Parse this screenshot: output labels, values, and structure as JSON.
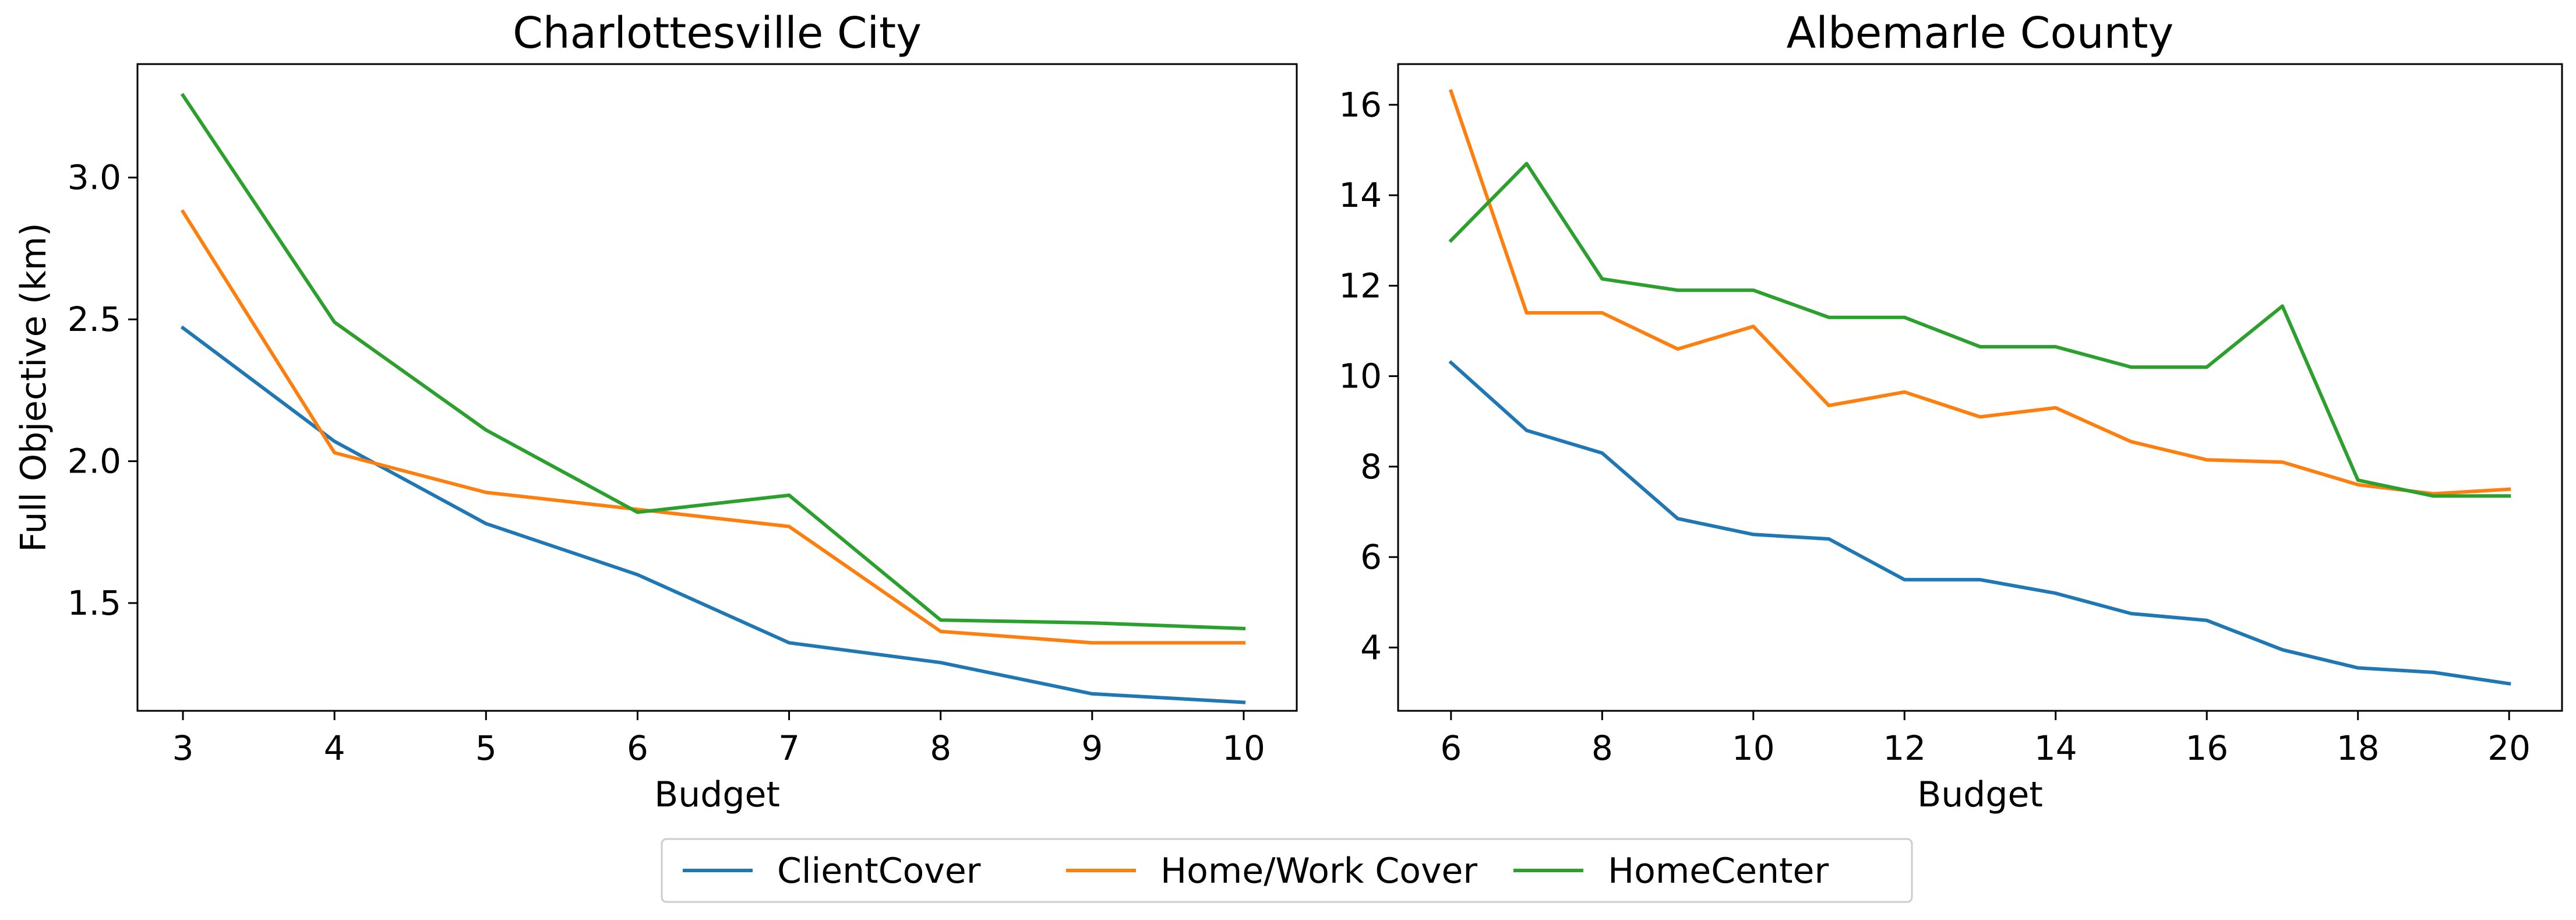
{
  "colors": {
    "ClientCover": "#1f77b4",
    "Home/Work Cover": "#ff7f0e",
    "HomeCenter": "#2ca02c"
  },
  "legend": {
    "placement": "bottom-center",
    "entries": [
      "ClientCover",
      "Home/Work Cover",
      "HomeCenter"
    ]
  },
  "chart_data": [
    {
      "type": "line",
      "title": "Charlottesville City",
      "xlabel": "Budget",
      "ylabel": "Full Objective (km)",
      "xlim": [
        2.7,
        10.35
      ],
      "ylim": [
        1.12,
        3.4
      ],
      "xticks": [
        3,
        4,
        5,
        6,
        7,
        8,
        9,
        10
      ],
      "yticks": [
        1.5,
        2.0,
        2.5,
        3.0
      ],
      "ytick_labels": [
        "1.5",
        "2.0",
        "2.5",
        "3.0"
      ],
      "grid": false,
      "x": [
        3,
        4,
        5,
        6,
        7,
        8,
        9,
        10
      ],
      "series": [
        {
          "name": "ClientCover",
          "values": [
            2.47,
            2.07,
            1.78,
            1.6,
            1.36,
            1.29,
            1.18,
            1.15
          ]
        },
        {
          "name": "Home/Work Cover",
          "values": [
            2.88,
            2.03,
            1.89,
            1.83,
            1.77,
            1.4,
            1.36,
            1.36
          ]
        },
        {
          "name": "HomeCenter",
          "values": [
            3.29,
            2.49,
            2.11,
            1.82,
            1.88,
            1.44,
            1.43,
            1.41
          ]
        }
      ]
    },
    {
      "type": "line",
      "title": "Albemarle County",
      "xlabel": "Budget",
      "ylabel": "",
      "xlim": [
        5.3,
        20.7
      ],
      "ylim": [
        2.6,
        16.9
      ],
      "xticks": [
        6,
        8,
        10,
        12,
        14,
        16,
        18,
        20
      ],
      "yticks": [
        4,
        6,
        8,
        10,
        12,
        14,
        16
      ],
      "ytick_labels": [
        "4",
        "6",
        "8",
        "10",
        "12",
        "14",
        "16"
      ],
      "grid": false,
      "x": [
        6,
        7,
        8,
        9,
        10,
        11,
        12,
        13,
        14,
        15,
        16,
        17,
        18,
        19,
        20
      ],
      "series": [
        {
          "name": "ClientCover",
          "values": [
            10.3,
            8.8,
            8.3,
            6.85,
            6.5,
            6.4,
            5.5,
            5.5,
            5.2,
            4.75,
            4.6,
            3.95,
            3.55,
            3.45,
            3.2
          ]
        },
        {
          "name": "Home/Work Cover",
          "values": [
            16.3,
            11.4,
            11.4,
            10.6,
            11.1,
            9.35,
            9.65,
            9.1,
            9.3,
            8.55,
            8.15,
            8.1,
            7.6,
            7.4,
            7.5
          ]
        },
        {
          "name": "HomeCenter",
          "values": [
            13.0,
            14.7,
            12.15,
            11.9,
            11.9,
            11.3,
            11.3,
            10.65,
            10.65,
            10.2,
            10.2,
            11.55,
            7.7,
            7.35,
            7.35
          ]
        }
      ]
    }
  ]
}
